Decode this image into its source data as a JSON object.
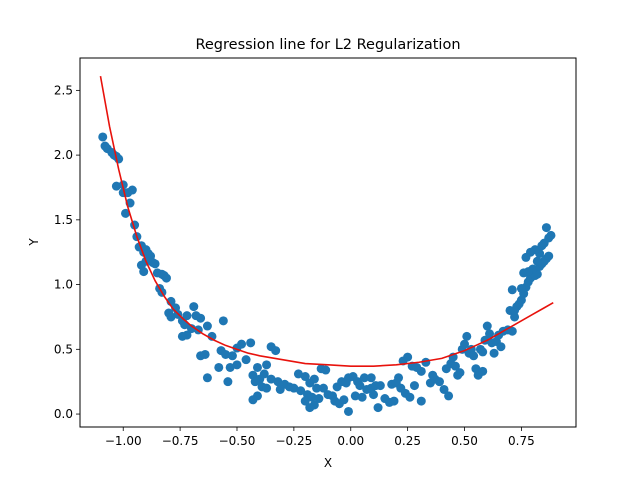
{
  "chart_data": {
    "type": "scatter",
    "title": "Regression line for L2 Regularization",
    "xlabel": "X",
    "ylabel": "Y",
    "xlim": [
      -1.19,
      0.99
    ],
    "ylim": [
      -0.1,
      2.75
    ],
    "x_ticks": [
      -1.0,
      -0.75,
      -0.5,
      -0.25,
      0.0,
      0.25,
      0.5,
      0.75
    ],
    "x_tick_labels": [
      "−1.00",
      "−0.75",
      "−0.50",
      "−0.25",
      "0.00",
      "0.25",
      "0.50",
      "0.75"
    ],
    "y_ticks": [
      0.0,
      0.5,
      1.0,
      1.5,
      2.0,
      2.5
    ],
    "y_tick_labels": [
      "0.0",
      "0.5",
      "1.0",
      "1.5",
      "2.0",
      "2.5"
    ],
    "grid": false,
    "colors": {
      "points": "#1f77b4",
      "line": "#e8120c"
    },
    "scatter_points": [
      [
        -1.09,
        2.14
      ],
      [
        -1.08,
        2.07
      ],
      [
        -1.07,
        2.05
      ],
      [
        -1.05,
        2.02
      ],
      [
        -1.04,
        2.0
      ],
      [
        -1.03,
        1.99
      ],
      [
        -1.02,
        1.97
      ],
      [
        -1.03,
        1.76
      ],
      [
        -1.0,
        1.77
      ],
      [
        -1.0,
        1.71
      ],
      [
        -0.99,
        1.55
      ],
      [
        -0.98,
        1.71
      ],
      [
        -0.96,
        1.73
      ],
      [
        -0.97,
        1.63
      ],
      [
        -0.95,
        1.46
      ],
      [
        -0.94,
        1.37
      ],
      [
        -0.93,
        1.29
      ],
      [
        -0.92,
        1.3
      ],
      [
        -0.91,
        1.25
      ],
      [
        -0.9,
        1.27
      ],
      [
        -0.89,
        1.24
      ],
      [
        -0.88,
        1.22
      ],
      [
        -0.9,
        1.18
      ],
      [
        -0.87,
        1.17
      ],
      [
        -0.86,
        1.16
      ],
      [
        -0.92,
        1.15
      ],
      [
        -0.91,
        1.1
      ],
      [
        -0.85,
        1.09
      ],
      [
        -0.83,
        1.08
      ],
      [
        -0.82,
        1.07
      ],
      [
        -0.81,
        1.05
      ],
      [
        -0.84,
        0.97
      ],
      [
        -0.83,
        0.94
      ],
      [
        -0.79,
        0.87
      ],
      [
        -0.77,
        0.82
      ],
      [
        -0.8,
        0.78
      ],
      [
        -0.79,
        0.75
      ],
      [
        -0.76,
        0.77
      ],
      [
        -0.72,
        0.76
      ],
      [
        -0.69,
        0.83
      ],
      [
        -0.68,
        0.76
      ],
      [
        -0.66,
        0.74
      ],
      [
        -0.74,
        0.72
      ],
      [
        -0.73,
        0.69
      ],
      [
        -0.7,
        0.66
      ],
      [
        -0.67,
        0.65
      ],
      [
        -0.72,
        0.61
      ],
      [
        -0.74,
        0.6
      ],
      [
        -0.63,
        0.68
      ],
      [
        -0.56,
        0.72
      ],
      [
        -0.61,
        0.6
      ],
      [
        -0.66,
        0.45
      ],
      [
        -0.64,
        0.46
      ],
      [
        -0.57,
        0.49
      ],
      [
        -0.55,
        0.46
      ],
      [
        -0.52,
        0.45
      ],
      [
        -0.5,
        0.51
      ],
      [
        -0.48,
        0.54
      ],
      [
        -0.44,
        0.55
      ],
      [
        -0.46,
        0.42
      ],
      [
        -0.5,
        0.38
      ],
      [
        -0.53,
        0.36
      ],
      [
        -0.58,
        0.36
      ],
      [
        -0.54,
        0.25
      ],
      [
        -0.63,
        0.28
      ],
      [
        -0.43,
        0.3
      ],
      [
        -0.41,
        0.36
      ],
      [
        -0.37,
        0.38
      ],
      [
        -0.35,
        0.52
      ],
      [
        -0.33,
        0.49
      ],
      [
        -0.38,
        0.31
      ],
      [
        -0.4,
        0.27
      ],
      [
        -0.42,
        0.25
      ],
      [
        -0.39,
        0.21
      ],
      [
        -0.37,
        0.2
      ],
      [
        -0.41,
        0.14
      ],
      [
        -0.43,
        0.11
      ],
      [
        -0.35,
        0.27
      ],
      [
        -0.32,
        0.25
      ],
      [
        -0.29,
        0.23
      ],
      [
        -0.27,
        0.21
      ],
      [
        -0.31,
        0.19
      ],
      [
        -0.25,
        0.2
      ],
      [
        -0.23,
        0.31
      ],
      [
        -0.2,
        0.29
      ],
      [
        -0.18,
        0.24
      ],
      [
        -0.16,
        0.27
      ],
      [
        -0.13,
        0.35
      ],
      [
        -0.11,
        0.34
      ],
      [
        -0.22,
        0.18
      ],
      [
        -0.19,
        0.15
      ],
      [
        -0.17,
        0.13
      ],
      [
        -0.15,
        0.2
      ],
      [
        -0.12,
        0.2
      ],
      [
        -0.14,
        0.12
      ],
      [
        -0.16,
        0.07
      ],
      [
        -0.18,
        0.05
      ],
      [
        -0.2,
        0.1
      ],
      [
        -0.1,
        0.15
      ],
      [
        -0.08,
        0.14
      ],
      [
        -0.06,
        0.21
      ],
      [
        -0.04,
        0.25
      ],
      [
        -0.02,
        0.24
      ],
      [
        -0.01,
        0.28
      ],
      [
        0.01,
        0.29
      ],
      [
        0.03,
        0.25
      ],
      [
        0.04,
        0.22
      ],
      [
        -0.07,
        0.1
      ],
      [
        -0.05,
        0.08
      ],
      [
        -0.03,
        0.11
      ],
      [
        -0.01,
        0.02
      ],
      [
        0.02,
        0.14
      ],
      [
        0.05,
        0.13
      ],
      [
        0.07,
        0.19
      ],
      [
        0.09,
        0.2
      ],
      [
        0.11,
        0.22
      ],
      [
        0.13,
        0.22
      ],
      [
        0.06,
        0.28
      ],
      [
        0.09,
        0.28
      ],
      [
        0.15,
        0.12
      ],
      [
        0.12,
        0.05
      ],
      [
        0.18,
        0.23
      ],
      [
        0.2,
        0.24
      ],
      [
        0.22,
        0.2
      ],
      [
        0.24,
        0.16
      ],
      [
        0.26,
        0.13
      ],
      [
        0.21,
        0.28
      ],
      [
        0.17,
        0.09
      ],
      [
        0.19,
        0.1
      ],
      [
        0.25,
        0.44
      ],
      [
        0.27,
        0.37
      ],
      [
        0.29,
        0.36
      ],
      [
        0.31,
        0.33
      ],
      [
        0.33,
        0.4
      ],
      [
        0.35,
        0.24
      ],
      [
        0.37,
        0.27
      ],
      [
        0.39,
        0.25
      ],
      [
        0.31,
        0.1
      ],
      [
        0.28,
        0.22
      ],
      [
        0.41,
        0.19
      ],
      [
        0.43,
        0.14
      ],
      [
        0.42,
        0.35
      ],
      [
        0.44,
        0.39
      ],
      [
        0.45,
        0.44
      ],
      [
        0.46,
        0.37
      ],
      [
        0.47,
        0.3
      ],
      [
        0.48,
        0.32
      ],
      [
        0.49,
        0.5
      ],
      [
        0.5,
        0.54
      ],
      [
        0.51,
        0.6
      ],
      [
        0.52,
        0.47
      ],
      [
        0.53,
        0.5
      ],
      [
        0.54,
        0.45
      ],
      [
        0.55,
        0.35
      ],
      [
        0.56,
        0.3
      ],
      [
        0.57,
        0.5
      ],
      [
        0.58,
        0.48
      ],
      [
        0.59,
        0.57
      ],
      [
        0.6,
        0.68
      ],
      [
        0.61,
        0.62
      ],
      [
        0.62,
        0.55
      ],
      [
        0.63,
        0.47
      ],
      [
        0.64,
        0.56
      ],
      [
        0.65,
        0.61
      ],
      [
        0.67,
        0.64
      ],
      [
        0.69,
        0.65
      ],
      [
        0.71,
        0.64
      ],
      [
        0.7,
        0.8
      ],
      [
        0.72,
        0.75
      ],
      [
        0.73,
        0.83
      ],
      [
        0.74,
        0.85
      ],
      [
        0.75,
        0.88
      ],
      [
        0.76,
        0.93
      ],
      [
        0.71,
        0.96
      ],
      [
        0.77,
        0.98
      ],
      [
        0.78,
        1.02
      ],
      [
        0.79,
        1.05
      ],
      [
        0.81,
        1.07
      ],
      [
        0.82,
        1.08
      ],
      [
        0.76,
        1.09
      ],
      [
        0.8,
        1.12
      ],
      [
        0.83,
        1.14
      ],
      [
        0.84,
        1.16
      ],
      [
        0.85,
        1.18
      ],
      [
        0.86,
        1.2
      ],
      [
        0.87,
        1.22
      ],
      [
        0.83,
        1.24
      ],
      [
        0.81,
        1.27
      ],
      [
        0.79,
        1.25
      ],
      [
        0.77,
        1.21
      ],
      [
        0.85,
        1.32
      ],
      [
        0.87,
        1.36
      ],
      [
        0.88,
        1.38
      ],
      [
        0.86,
        1.44
      ],
      [
        0.84,
        1.3
      ],
      [
        0.82,
        1.18
      ],
      [
        0.78,
        1.1
      ],
      [
        0.75,
        0.97
      ],
      [
        0.72,
        0.8
      ],
      [
        0.66,
        0.52
      ],
      [
        0.58,
        0.33
      ],
      [
        0.23,
        0.41
      ],
      [
        0.36,
        0.3
      ],
      [
        0.1,
        0.15
      ]
    ],
    "regression_line": {
      "x": [
        -1.1,
        -1.06,
        -1.02,
        -0.98,
        -0.94,
        -0.9,
        -0.86,
        -0.82,
        -0.78,
        -0.74,
        -0.7,
        -0.65,
        -0.6,
        -0.55,
        -0.5,
        -0.45,
        -0.4,
        -0.3,
        -0.2,
        -0.1,
        0.0,
        0.1,
        0.2,
        0.3,
        0.4,
        0.5,
        0.55,
        0.6,
        0.65,
        0.7,
        0.75,
        0.8,
        0.85,
        0.89
      ],
      "y": [
        2.61,
        2.22,
        1.89,
        1.6,
        1.37,
        1.18,
        1.03,
        0.91,
        0.81,
        0.74,
        0.68,
        0.62,
        0.57,
        0.53,
        0.5,
        0.47,
        0.45,
        0.42,
        0.39,
        0.38,
        0.37,
        0.37,
        0.38,
        0.4,
        0.43,
        0.49,
        0.53,
        0.57,
        0.62,
        0.67,
        0.72,
        0.77,
        0.82,
        0.86
      ]
    }
  }
}
